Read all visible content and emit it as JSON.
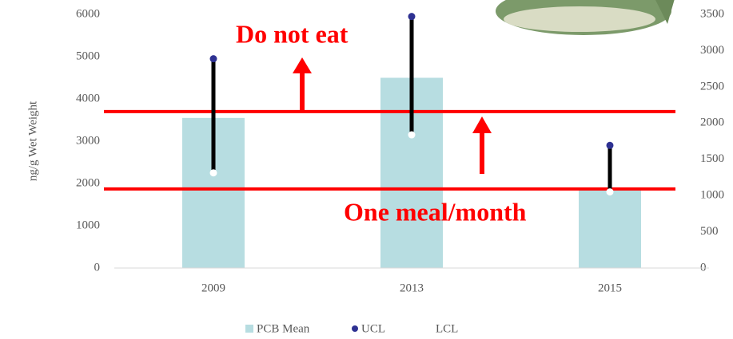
{
  "chart_data": {
    "type": "bar",
    "ylabel": "ng/g Wet Weight",
    "categories": [
      "2009",
      "2013",
      "2015"
    ],
    "series": [
      {
        "name": "PCB Mean",
        "color": "#b7dde1",
        "values": [
          3550,
          4500,
          1850
        ]
      },
      {
        "name": "UCL",
        "color": "#2e3192",
        "values": [
          4950,
          5950,
          2900
        ]
      },
      {
        "name": "LCL",
        "color": "#ffffff",
        "values": [
          2250,
          3150,
          1800
        ]
      }
    ],
    "thresholds": [
      {
        "label": "Do not eat",
        "value": 3700,
        "color": "#ff0000"
      },
      {
        "label": "One meal/month",
        "value": 1870,
        "color": "#ff0000"
      }
    ],
    "ylim": [
      0,
      6000
    ],
    "yticks": [
      0,
      1000,
      2000,
      3000,
      4000,
      5000,
      6000
    ],
    "y2lim": [
      0,
      3500
    ],
    "y2ticks": [
      0,
      500,
      1000,
      1500,
      2000,
      2500,
      3000,
      3500
    ]
  }
}
